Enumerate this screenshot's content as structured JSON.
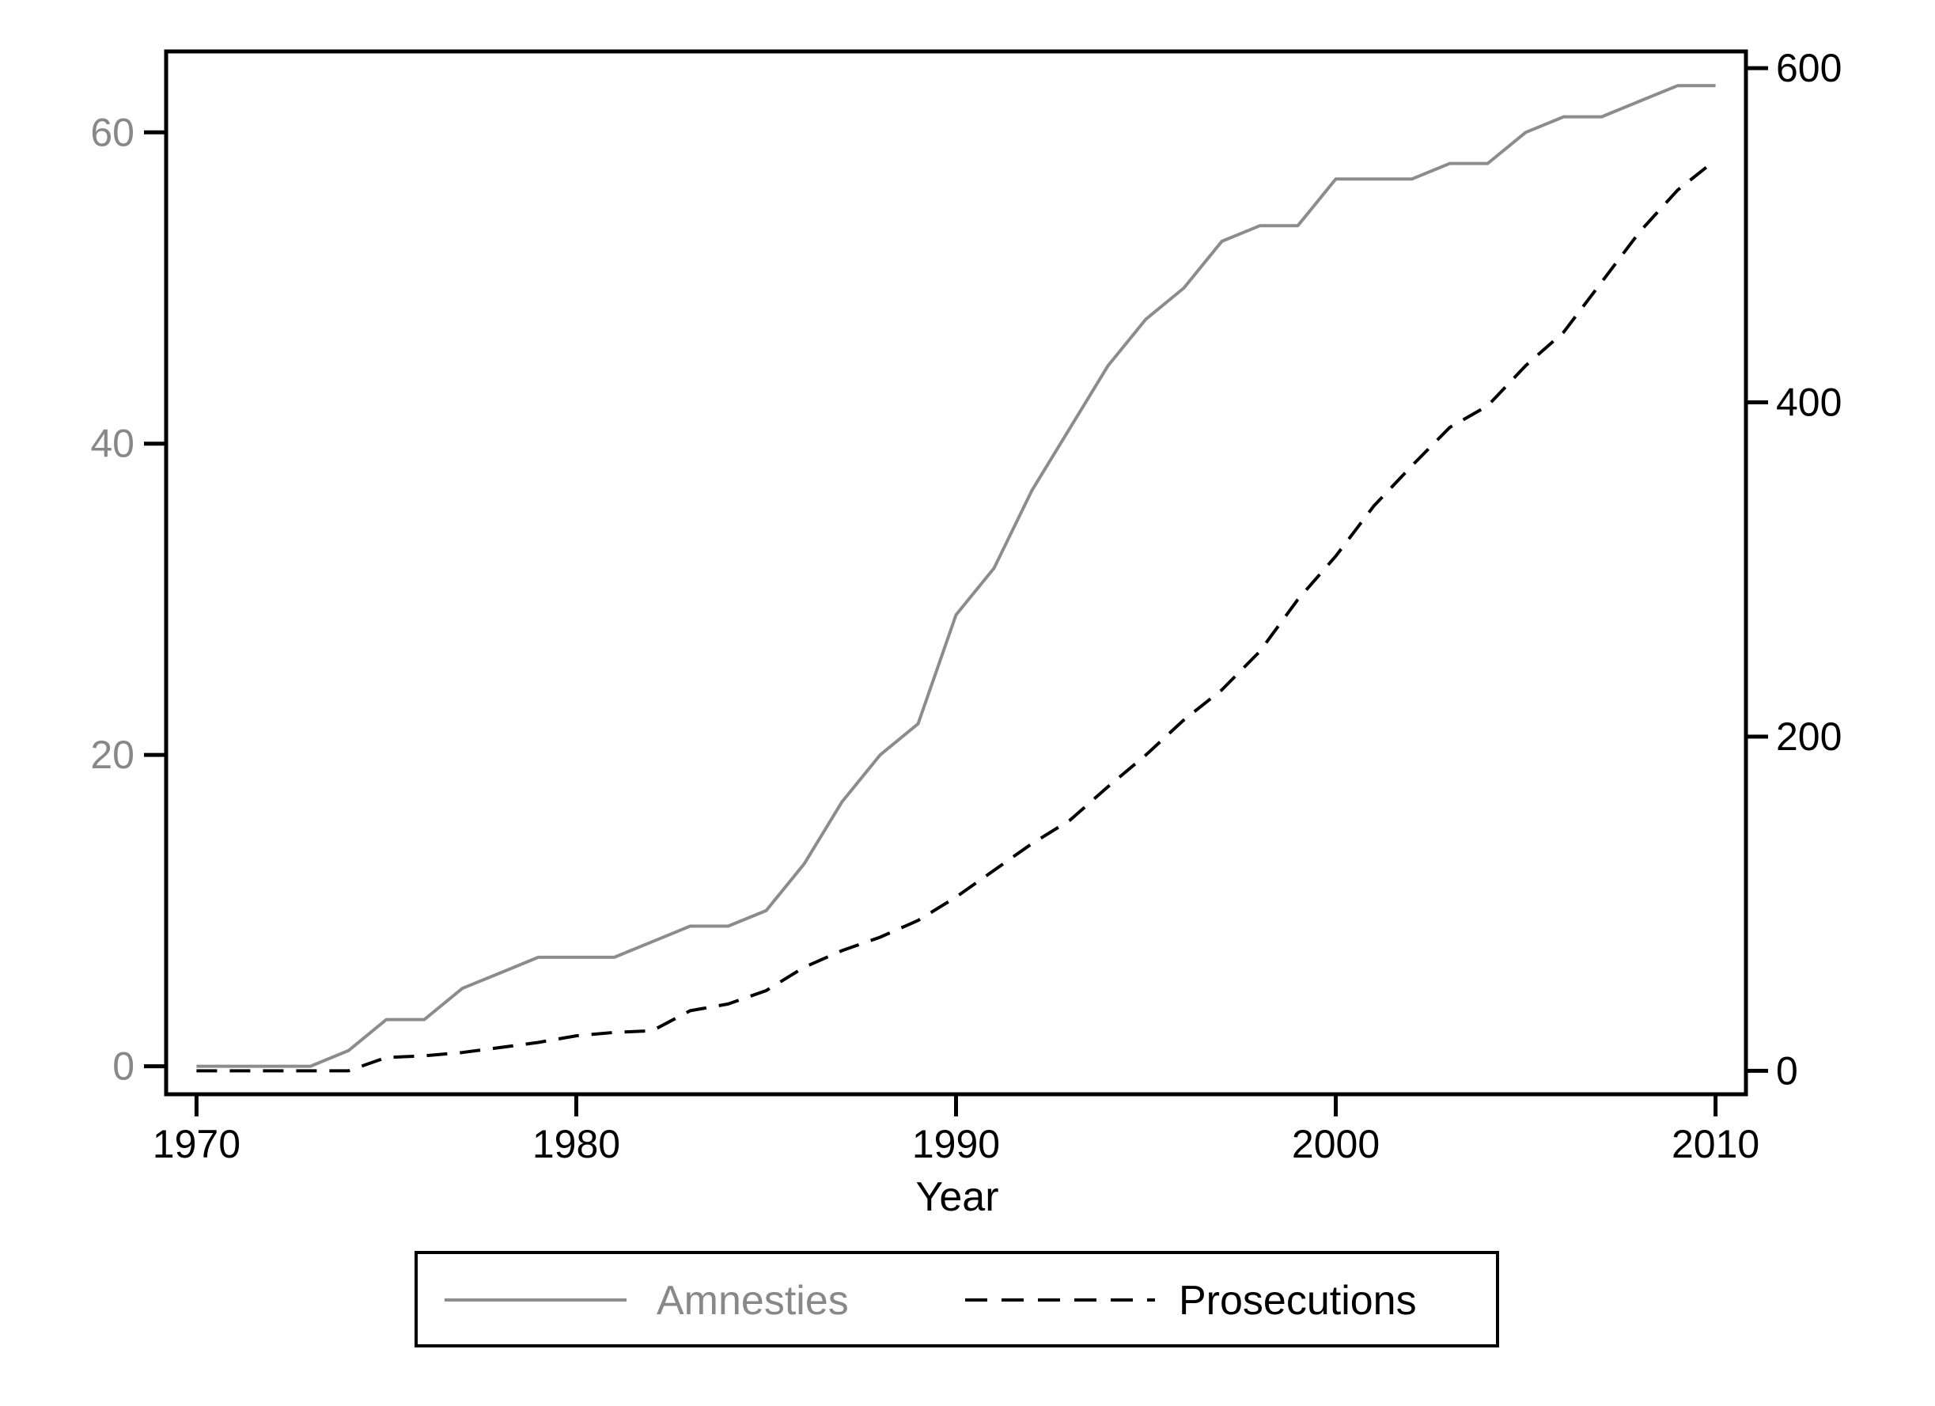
{
  "chart_data": {
    "type": "line",
    "xlabel": "Year",
    "x": [
      1970,
      1971,
      1972,
      1973,
      1974,
      1975,
      1976,
      1977,
      1978,
      1979,
      1980,
      1981,
      1982,
      1983,
      1984,
      1985,
      1986,
      1987,
      1988,
      1989,
      1990,
      1991,
      1992,
      1993,
      1994,
      1995,
      1996,
      1997,
      1998,
      1999,
      2000,
      2001,
      2002,
      2003,
      2004,
      2005,
      2006,
      2007,
      2008,
      2009,
      2010
    ],
    "xlim": [
      1969.2,
      2010.8
    ],
    "xticks": [
      "1970",
      "1980",
      "1990",
      "2000",
      "2010"
    ],
    "series": [
      {
        "name": "Amnesties",
        "axis": "left",
        "color": "#8c8c8c",
        "dash": "solid",
        "values": [
          0,
          0,
          0,
          0,
          1,
          3,
          3,
          5,
          6,
          7,
          7,
          7,
          8,
          9,
          9,
          10,
          13,
          17,
          20,
          22,
          29,
          32,
          37,
          41,
          45,
          48,
          50,
          53,
          54,
          54,
          57,
          57,
          57,
          58,
          58,
          60,
          61,
          61,
          62,
          63,
          63
        ]
      },
      {
        "name": "Prosecutions",
        "axis": "right",
        "color": "#000000",
        "dash": "dashed",
        "values": [
          0,
          0,
          0,
          0,
          0,
          8,
          9,
          11,
          14,
          17,
          21,
          23,
          24,
          36,
          40,
          48,
          62,
          72,
          80,
          90,
          104,
          120,
          136,
          150,
          170,
          189,
          210,
          228,
          251,
          282,
          308,
          338,
          362,
          385,
          398,
          422,
          442,
          472,
          502,
          527,
          545
        ]
      }
    ],
    "ylim_left": [
      -1.8,
      65.2
    ],
    "yticks_left": [
      "0",
      "20",
      "40",
      "60"
    ],
    "ylim_right": [
      -14,
      610
    ],
    "yticks_right": [
      "0",
      "200",
      "400",
      "600"
    ],
    "grid": false,
    "legend": "bottom-center"
  }
}
